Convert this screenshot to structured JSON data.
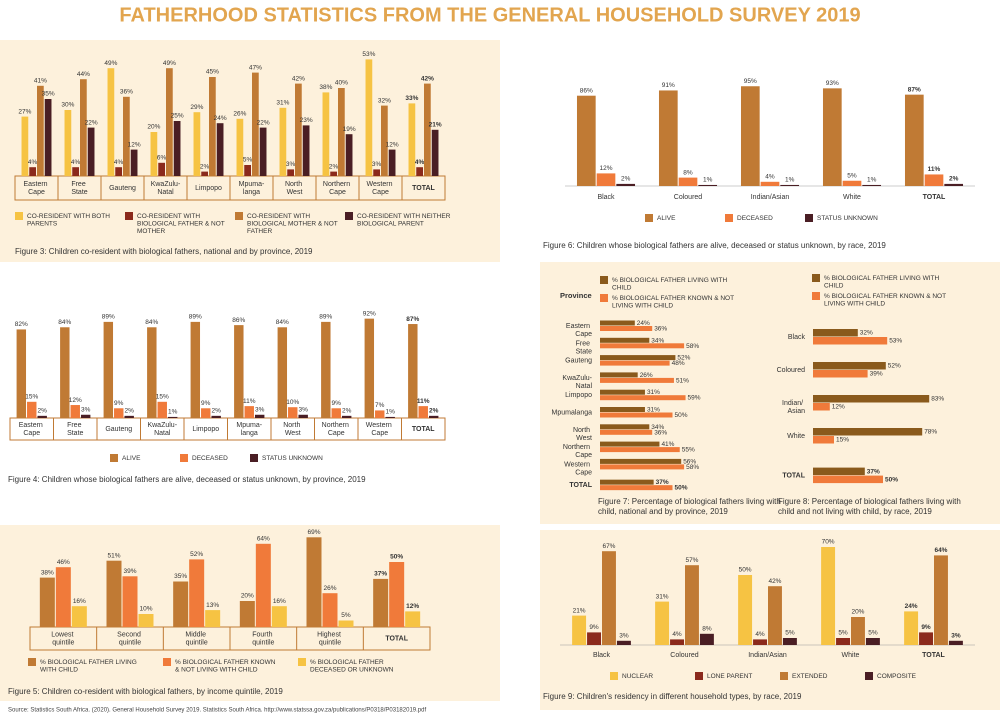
{
  "title": "FATHERHOOD STATISTICS FROM THE GENERAL HOUSEHOLD SURVEY 2019",
  "source": "Source: Statistics South Africa. (2020). General Household Survey 2019. Statistics South Africa. http://www.statssa.gov.za/publications/P0318/P03182019.pdf",
  "chart_data": [
    {
      "type": "bar",
      "title": "Figure 3: Children co-resident with biological fathers, national and by province, 2019",
      "categories": [
        "Eastern Cape",
        "Free State",
        "Gauteng",
        "KwaZulu-Natal",
        "Limpopo",
        "Mpuma-langa",
        "North West",
        "Northern Cape",
        "Western Cape",
        "TOTAL"
      ],
      "series": [
        {
          "name": "CO-RESIDENT WITH BOTH PARENTS",
          "color": "#f6c343",
          "values": [
            27,
            30,
            49,
            20,
            29,
            26,
            31,
            38,
            53,
            33
          ],
          "value_labels": [
            "27%",
            "30%",
            "49%",
            "20%",
            "29%",
            "26%",
            "31%",
            "38%",
            "53%",
            "33%"
          ]
        },
        {
          "name": "CO-RESIDENT WITH BIOLOGICAL FATHER & NOT MOTHER",
          "color": "#8b2a1c",
          "values": [
            4,
            4,
            4,
            6,
            2,
            5,
            3,
            2,
            3,
            4
          ],
          "value_labels": [
            "4%",
            "4%",
            "4%",
            "6%",
            "2%",
            "5%",
            "3%",
            "2%",
            "3%",
            "4%"
          ]
        },
        {
          "name": "CO-RESIDENT WITH BIOLOGICAL MOTHER & NOT FATHER",
          "color": "#c07a34",
          "values": [
            41,
            44,
            36,
            49,
            45,
            47,
            42,
            40,
            32,
            42
          ],
          "value_labels": [
            "41%",
            "44%",
            "36%",
            "49%",
            "45%",
            "47%",
            "42%",
            "40%",
            "32%",
            "42%"
          ]
        },
        {
          "name": "CO-RESIDENT WITH NEITHER BIOLOGICAL PARENT",
          "color": "#4a1e24",
          "values": [
            35,
            22,
            12,
            25,
            24,
            22,
            23,
            19,
            12,
            21
          ],
          "value_labels": [
            "35%",
            "22%",
            "12%",
            "25%",
            "24%",
            "22%",
            "23%",
            "19%",
            "12%",
            "21%"
          ]
        }
      ]
    },
    {
      "type": "bar",
      "title": "Figure 6: Children whose biological fathers are alive, deceased or status unknown, by race, 2019",
      "categories": [
        "Black",
        "Coloured",
        "Indian/Asian",
        "White",
        "TOTAL"
      ],
      "series": [
        {
          "name": "ALIVE",
          "color": "#c07a34",
          "values": [
            86,
            91,
            95,
            93,
            87
          ],
          "value_labels": [
            "86%",
            "91%",
            "95%",
            "93%",
            "87%"
          ]
        },
        {
          "name": "DECEASED",
          "color": "#f07a3a",
          "values": [
            12,
            8,
            4,
            5,
            11
          ],
          "value_labels": [
            "12%",
            "8%",
            "4%",
            "5%",
            "11%"
          ]
        },
        {
          "name": "STATUS UNKNOWN",
          "color": "#4a1e24",
          "values": [
            2,
            1,
            1,
            1,
            2
          ],
          "value_labels": [
            "2%",
            "1%",
            "1%",
            "1%",
            "2%"
          ]
        }
      ]
    },
    {
      "type": "bar",
      "title": "Figure 4: Children whose biological fathers are alive, deceased or status unknown, by province, 2019",
      "categories": [
        "Eastern Cape",
        "Free State",
        "Gauteng",
        "KwaZulu-Natal",
        "Limpopo",
        "Mpuma-langa",
        "North West",
        "Northern Cape",
        "Western Cape",
        "TOTAL"
      ],
      "series": [
        {
          "name": "ALIVE",
          "color": "#c07a34",
          "values": [
            82,
            84,
            89,
            84,
            89,
            86,
            84,
            89,
            92,
            87
          ],
          "value_labels": [
            "82%",
            "84%",
            "89%",
            "84%",
            "89%",
            "86%",
            "84%",
            "89%",
            "92%",
            "87%"
          ]
        },
        {
          "name": "DECEASED",
          "color": "#f07a3a",
          "values": [
            15,
            12,
            9,
            15,
            9,
            11,
            10,
            9,
            7,
            11
          ],
          "value_labels": [
            "15%",
            "12%",
            "9%",
            "15%",
            "9%",
            "11%",
            "10%",
            "9%",
            "7%",
            "11%"
          ]
        },
        {
          "name": "STATUS UNKNOWN",
          "color": "#4a1e24",
          "values": [
            2,
            3,
            2,
            1,
            2,
            3,
            3,
            2,
            1,
            2
          ],
          "value_labels": [
            "2%",
            "3%",
            "2%",
            "1%",
            "2%",
            "3%",
            "3%",
            "2%",
            "1%",
            "2%"
          ]
        }
      ]
    },
    {
      "type": "barh",
      "title": "Figure 7: Percentage of biological fathers living with child, national and by province, 2019",
      "category_header": "Province",
      "categories": [
        "Eastern Cape",
        "Free State",
        "Gauteng",
        "KwaZulu-Natal",
        "Limpopo",
        "Mpumalanga",
        "North West",
        "Northern Cape",
        "Western Cape",
        "TOTAL"
      ],
      "series": [
        {
          "name": "% BIOLOGICAL FATHER LIVING WITH CHILD",
          "color": "#8a5a1c",
          "values": [
            24,
            34,
            52,
            26,
            31,
            31,
            34,
            41,
            56,
            37
          ],
          "value_labels": [
            "24%",
            "34%",
            "52%",
            "26%",
            "31%",
            "31%",
            "34%",
            "41%",
            "56%",
            "37%"
          ]
        },
        {
          "name": "% BIOLOGICAL FATHER KNOWN & NOT LIVING WITH CHILD",
          "color": "#f07a3a",
          "values": [
            36,
            58,
            48,
            51,
            59,
            50,
            36,
            55,
            58,
            50
          ],
          "value_labels": [
            "36%",
            "58%",
            "48%",
            "51%",
            "59%",
            "50%",
            "36%",
            "55%",
            "58%",
            "50%"
          ]
        }
      ]
    },
    {
      "type": "barh",
      "title": "Figure 8: Percentage of biological fathers living with child and not living with child, by race, 2019",
      "categories": [
        "Black",
        "Coloured",
        "Indian/ Asian",
        "White",
        "TOTAL"
      ],
      "series": [
        {
          "name": "% BIOLOGICAL FATHER LIVING WITH CHILD",
          "color": "#8a5a1c",
          "values": [
            32,
            52,
            83,
            78,
            37
          ],
          "value_labels": [
            "32%",
            "52%",
            "83%",
            "78%",
            "37%"
          ]
        },
        {
          "name": "% BIOLOGICAL FATHER KNOWN & NOT LIVING WITH CHILD",
          "color": "#f07a3a",
          "values": [
            53,
            39,
            12,
            15,
            50
          ],
          "value_labels": [
            "53%",
            "39%",
            "12%",
            "15%",
            "50%"
          ]
        }
      ]
    },
    {
      "type": "bar",
      "title": "Figure 5: Children co-resident with biological fathers, by income quintile, 2019",
      "categories": [
        "Lowest quintile",
        "Second quintile",
        "Middle quintile",
        "Fourth quintile",
        "Highest quintile",
        "TOTAL"
      ],
      "series": [
        {
          "name": "% BIOLOGICAL FATHER LIVING WITH CHILD",
          "color": "#c07a34",
          "values": [
            38,
            51,
            35,
            20,
            69,
            37
          ],
          "value_labels": [
            "38%",
            "51%",
            "35%",
            "20%",
            "69%",
            "37%"
          ]
        },
        {
          "name": "% BIOLOGICAL FATHER KNOWN & NOT LIVING WITH CHILD",
          "color": "#f07a3a",
          "values": [
            46,
            39,
            52,
            64,
            26,
            50
          ],
          "value_labels": [
            "46%",
            "39%",
            "52%",
            "64%",
            "26%",
            "50%"
          ]
        },
        {
          "name": "% BIOLOGICAL FATHER DECEASED OR UNKNOWN",
          "color": "#f6c343",
          "values": [
            16,
            10,
            13,
            16,
            5,
            12
          ],
          "value_labels": [
            "16%",
            "10%",
            "13%",
            "16%",
            "5%",
            "12%"
          ]
        }
      ]
    },
    {
      "type": "bar",
      "title": "Figure 9: Children's residency in different household types, by race, 2019",
      "categories": [
        "Black",
        "Coloured",
        "Indian/Asian",
        "White",
        "TOTAL"
      ],
      "series": [
        {
          "name": "NUCLEAR",
          "color": "#f6c343",
          "values": [
            21,
            31,
            50,
            70,
            24
          ],
          "value_labels": [
            "21%",
            "31%",
            "50%",
            "70%",
            "24%"
          ]
        },
        {
          "name": "LONE PARENT",
          "color": "#8b2a1c",
          "values": [
            9,
            4,
            4,
            5,
            9
          ],
          "value_labels": [
            "9%",
            "4%",
            "4%",
            "5%",
            "9%"
          ]
        },
        {
          "name": "EXTENDED",
          "color": "#c07a34",
          "values": [
            67,
            57,
            42,
            20,
            64
          ],
          "value_labels": [
            "67%",
            "57%",
            "42%",
            "20%",
            "64%"
          ]
        },
        {
          "name": "COMPOSITE",
          "color": "#4a1e24",
          "values": [
            3,
            8,
            5,
            5,
            3
          ],
          "value_labels": [
            "3%",
            "8%",
            "5%",
            "5%",
            "3%"
          ]
        }
      ]
    }
  ]
}
